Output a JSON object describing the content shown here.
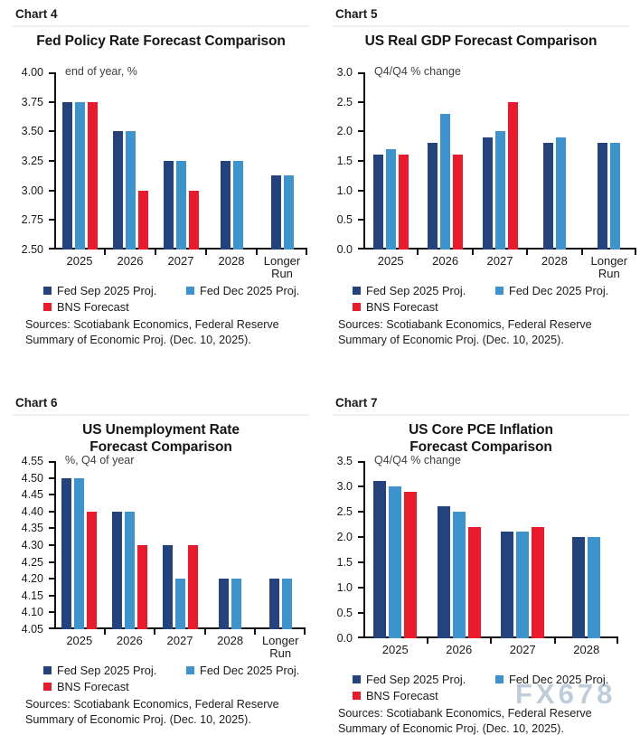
{
  "watermark": "FX678",
  "colors": {
    "fed_sep_navy": "#24427D",
    "fed_dec_blue": "#3D93CE",
    "bns_red": "#EA1A2C",
    "axis": "#121212",
    "watermark": "#94ACC3"
  },
  "legend": {
    "items": [
      {
        "label": "Fed Sep 2025 Proj.",
        "color": "#24427D"
      },
      {
        "label": "Fed Dec 2025 Proj.",
        "color": "#3D93CE"
      },
      {
        "label": "BNS Forecast",
        "color": "#EA1A2C"
      }
    ]
  },
  "sources": {
    "line1": "Sources: Scotiabank Economics, Federal Reserve",
    "line2": "Summary of Economic Proj. (Dec. 10, 2025)."
  },
  "chart_data": [
    {
      "id": "chart-4",
      "label": "Chart 4",
      "type": "bar",
      "title_lines": [
        "Fed Policy Rate Forecast Comparison"
      ],
      "unit_label": "end of year, %",
      "categories": [
        "2025",
        "2026",
        "2027",
        "2028",
        "Longer Run"
      ],
      "ylim": [
        2.5,
        4.0
      ],
      "ytick_step": 0.25,
      "ytick_decimals": 2,
      "grid": false,
      "legend_position": "bottom",
      "series": [
        {
          "name": "Fed Sep 2025 Proj.",
          "color": "#24427D",
          "values": [
            3.75,
            3.5,
            3.25,
            3.25,
            3.13
          ]
        },
        {
          "name": "Fed Dec 2025 Proj.",
          "color": "#3D93CE",
          "values": [
            3.75,
            3.5,
            3.25,
            3.25,
            3.13
          ]
        },
        {
          "name": "BNS Forecast",
          "color": "#EA1A2C",
          "values": [
            3.75,
            3.0,
            3.0,
            null,
            null
          ]
        }
      ]
    },
    {
      "id": "chart-5",
      "label": "Chart 5",
      "type": "bar",
      "title_lines": [
        "US Real GDP Forecast Comparison"
      ],
      "unit_label": "Q4/Q4 % change",
      "categories": [
        "2025",
        "2026",
        "2027",
        "2028",
        "Longer Run"
      ],
      "ylim": [
        0.0,
        3.0
      ],
      "ytick_step": 0.5,
      "ytick_decimals": 1,
      "grid": false,
      "legend_position": "bottom",
      "series": [
        {
          "name": "Fed Sep 2025 Proj.",
          "color": "#24427D",
          "values": [
            1.6,
            1.8,
            1.9,
            1.8,
            1.8
          ]
        },
        {
          "name": "Fed Dec 2025 Proj.",
          "color": "#3D93CE",
          "values": [
            1.7,
            2.3,
            2.0,
            1.9,
            1.8
          ]
        },
        {
          "name": "BNS Forecast",
          "color": "#EA1A2C",
          "values": [
            1.6,
            1.6,
            2.5,
            null,
            null
          ]
        }
      ]
    },
    {
      "id": "chart-6",
      "label": "Chart 6",
      "type": "bar",
      "title_lines": [
        "US Unemployment Rate",
        "Forecast Comparison"
      ],
      "unit_label": "%, Q4 of year",
      "categories": [
        "2025",
        "2026",
        "2027",
        "2028",
        "Longer Run"
      ],
      "ylim": [
        4.05,
        4.55
      ],
      "ytick_step": 0.05,
      "ytick_decimals": 2,
      "grid": false,
      "legend_position": "bottom",
      "series": [
        {
          "name": "Fed Sep 2025 Proj.",
          "color": "#24427D",
          "values": [
            4.5,
            4.4,
            4.3,
            4.2,
            4.2
          ]
        },
        {
          "name": "Fed Dec 2025 Proj.",
          "color": "#3D93CE",
          "values": [
            4.5,
            4.4,
            4.2,
            4.2,
            4.2
          ]
        },
        {
          "name": "BNS Forecast",
          "color": "#EA1A2C",
          "values": [
            4.4,
            4.3,
            4.3,
            null,
            null
          ]
        }
      ]
    },
    {
      "id": "chart-7",
      "label": "Chart 7",
      "type": "bar",
      "title_lines": [
        "US Core PCE Inflation",
        "Forecast Comparison"
      ],
      "unit_label": "Q4/Q4 % change",
      "categories": [
        "2025",
        "2026",
        "2027",
        "2028"
      ],
      "ylim": [
        0.0,
        3.5
      ],
      "ytick_step": 0.5,
      "ytick_decimals": 1,
      "grid": false,
      "legend_position": "bottom",
      "series": [
        {
          "name": "Fed Sep 2025 Proj.",
          "color": "#24427D",
          "values": [
            3.1,
            2.6,
            2.1,
            2.0
          ]
        },
        {
          "name": "Fed Dec 2025 Proj.",
          "color": "#3D93CE",
          "values": [
            3.0,
            2.5,
            2.1,
            2.0
          ]
        },
        {
          "name": "BNS Forecast",
          "color": "#EA1A2C",
          "values": [
            2.9,
            2.2,
            2.2,
            null
          ]
        }
      ]
    }
  ]
}
